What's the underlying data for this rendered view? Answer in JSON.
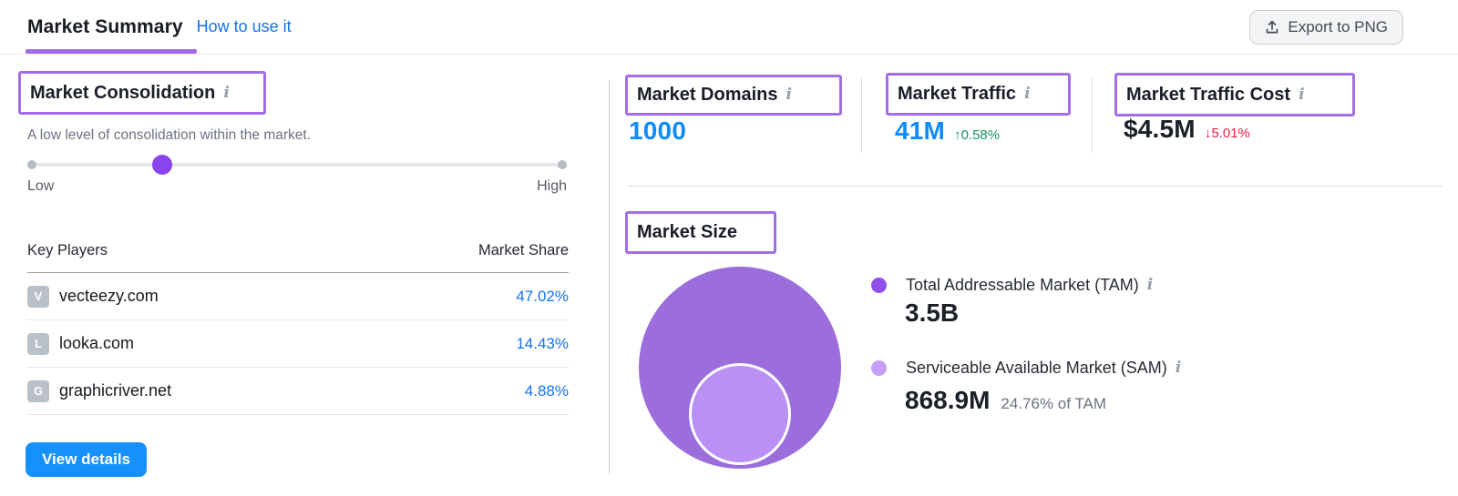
{
  "header": {
    "title": "Market Summary",
    "how_to_link": "How to use it",
    "export_label": "Export to PNG"
  },
  "icons": {
    "info": "i",
    "up_arrow": "↑",
    "down_arrow": "↓"
  },
  "consolidation": {
    "title": "Market Consolidation",
    "description": "A low level of consolidation within the market.",
    "level_percent": 25,
    "low_label": "Low",
    "high_label": "High"
  },
  "key_players": {
    "col_player": "Key Players",
    "col_share": "Market Share",
    "rows": [
      {
        "initial": "V",
        "domain": "vecteezy.com",
        "share": "47.02%"
      },
      {
        "initial": "L",
        "domain": "looka.com",
        "share": "14.43%"
      },
      {
        "initial": "G",
        "domain": "graphicriver.net",
        "share": "4.88%"
      }
    ],
    "view_details_label": "View details"
  },
  "stats": {
    "domains": {
      "label": "Market Domains",
      "value": "1000"
    },
    "traffic": {
      "label": "Market Traffic",
      "value": "41M",
      "change": "↑0.58%",
      "trend": "up"
    },
    "traffic_cost": {
      "label": "Market Traffic Cost",
      "value": "$4.5M",
      "change": "↓5.01%",
      "trend": "down"
    }
  },
  "market_size": {
    "title": "Market Size",
    "tam": {
      "label": "Total Addressable Market (TAM)",
      "value": "3.5B"
    },
    "sam": {
      "label": "Serviceable Available Market (SAM)",
      "value": "868.9M",
      "share_of_tam": "24.76% of TAM"
    }
  },
  "chart_data": {
    "type": "bubble",
    "title": "Market Size",
    "series": [
      {
        "name": "Total Addressable Market (TAM)",
        "value": "3.5B",
        "color": "#8f4fe8"
      },
      {
        "name": "Serviceable Available Market (SAM)",
        "value": "868.9M",
        "percent_of_tam": 24.76,
        "color": "#c89ff8"
      }
    ]
  },
  "colors": {
    "annotation_purple": "#a36de8",
    "metric_blue": "#108bfa",
    "link_blue": "#1473e6",
    "positive_green": "#14945e",
    "negative_red": "#e01f40",
    "slider_handle_purple": "#8a44ee",
    "bubble_outer": "#9b6edc",
    "bubble_inner": "#ba90f4"
  }
}
